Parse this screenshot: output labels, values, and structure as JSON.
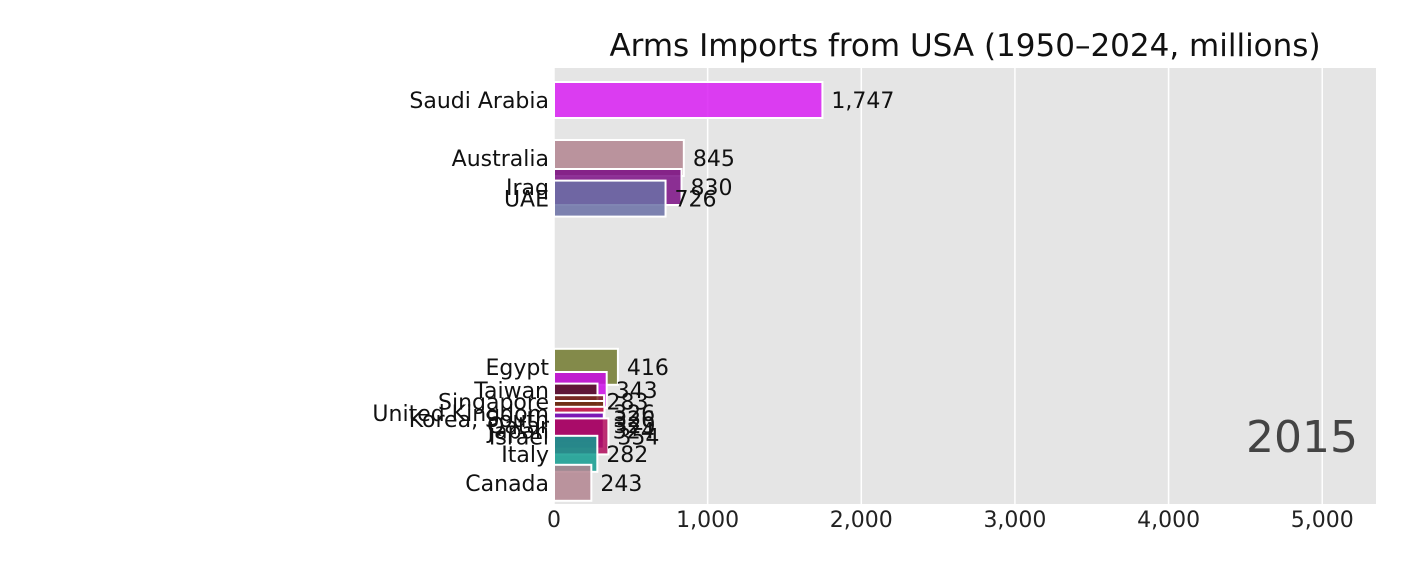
{
  "chart_data": {
    "type": "bar",
    "orientation": "horizontal",
    "title": "Arms Imports from USA (1950–2024, millions)",
    "year_label": "2015",
    "xlim": [
      0,
      5350
    ],
    "xticks": [
      0,
      1000,
      2000,
      3000,
      4000,
      5000
    ],
    "xtick_labels": [
      "0",
      "1,000",
      "2,000",
      "3,000",
      "4,000",
      "5,000"
    ],
    "grid": true,
    "legend": "none",
    "categories": [
      "Saudi Arabia",
      "Australia",
      "Iraq",
      "UAE",
      "Egypt",
      "Taiwan",
      "Singapore",
      "United Kingdom",
      "Korea, South",
      "Qatar",
      "Japan",
      "Israel",
      "Italy",
      "Canada"
    ],
    "values": [
      1747,
      845,
      830,
      726,
      416,
      343,
      283,
      326,
      326,
      329,
      324,
      354,
      282,
      243
    ],
    "value_labels": [
      "1,747",
      "845",
      "830",
      "726",
      "416",
      "343",
      "283",
      "326",
      "326",
      "329",
      "324",
      "354",
      "282",
      "243"
    ],
    "rank_positions": [
      1.0,
      2.0,
      2.5,
      2.7,
      5.6,
      6.0,
      6.2,
      6.4,
      6.5,
      6.6,
      6.7,
      6.8,
      7.1,
      7.6
    ],
    "colors": [
      "#d91ff3",
      "#b38591",
      "#7b0f85",
      "#6a70a6",
      "#727a2f",
      "#cb0be6",
      "#4b1318",
      "#7a2b1f",
      "#6e3014",
      "#d5265e",
      "#6e17c7",
      "#b20a5c",
      "#109c8f",
      "#b38591"
    ]
  }
}
